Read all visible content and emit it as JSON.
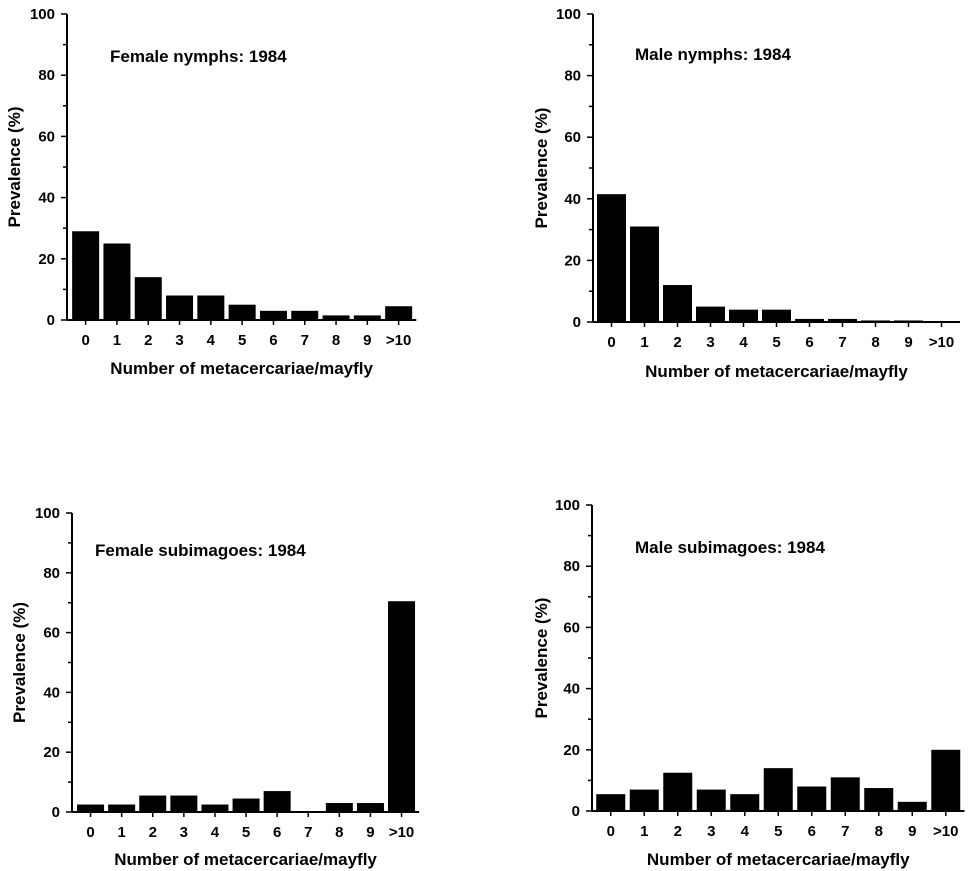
{
  "chart_data": [
    {
      "type": "bar",
      "title": "Female  nymphs:  1984",
      "xlabel": "Number  of  metacercariae/mayfly",
      "ylabel": "Prevalence  (%)",
      "categories": [
        "0",
        "1",
        "2",
        "3",
        "4",
        "5",
        "6",
        "7",
        "8",
        "9",
        ">10"
      ],
      "values": [
        29,
        25,
        14,
        8,
        8,
        5,
        3,
        3,
        1.5,
        1.5,
        4.5
      ],
      "ylim": [
        0,
        100
      ],
      "yticks": [
        "0",
        "20",
        "40",
        "60",
        "80",
        "100"
      ],
      "grid": false
    },
    {
      "type": "bar",
      "title": "Male  nymphs:  1984",
      "xlabel": "Number  of  metacercariae/mayfly",
      "ylabel": "Prevalence  (%)",
      "categories": [
        "0",
        "1",
        "2",
        "3",
        "4",
        "5",
        "6",
        "7",
        "8",
        "9",
        ">10"
      ],
      "values": [
        41.5,
        31,
        12,
        5,
        4,
        4,
        1,
        1,
        0.5,
        0.5,
        0
      ],
      "ylim": [
        0,
        100
      ],
      "yticks": [
        "0",
        "20",
        "40",
        "60",
        "80",
        "100"
      ],
      "grid": false
    },
    {
      "type": "bar",
      "title": "Female  subimagoes:  1984",
      "xlabel": "Number  of  metacercariae/mayfly",
      "ylabel": "Prevalence  (%)",
      "categories": [
        "0",
        "1",
        "2",
        "3",
        "4",
        "5",
        "6",
        "7",
        "8",
        "9",
        ">10"
      ],
      "values": [
        2.5,
        2.5,
        5.5,
        5.5,
        2.5,
        4.5,
        7,
        0,
        3,
        3,
        70.5
      ],
      "ylim": [
        0,
        100
      ],
      "yticks": [
        "0",
        "20",
        "40",
        "60",
        "80",
        "100"
      ],
      "grid": false
    },
    {
      "type": "bar",
      "title": "Male  subimagoes:  1984",
      "xlabel": "Number  of  metacercariae/mayfly",
      "ylabel": "Prevalence  (%)",
      "categories": [
        "0",
        "1",
        "2",
        "3",
        "4",
        "5",
        "6",
        "7",
        "8",
        "9",
        ">10"
      ],
      "values": [
        5.5,
        7,
        12.5,
        7,
        5.5,
        14,
        8,
        11,
        7.5,
        3,
        20
      ],
      "ylim": [
        0,
        100
      ],
      "yticks": [
        "0",
        "20",
        "40",
        "60",
        "80",
        "100"
      ],
      "grid": false
    }
  ],
  "colors": {
    "bar": "#000000",
    "axis": "#000000",
    "background": "#ffffff"
  }
}
